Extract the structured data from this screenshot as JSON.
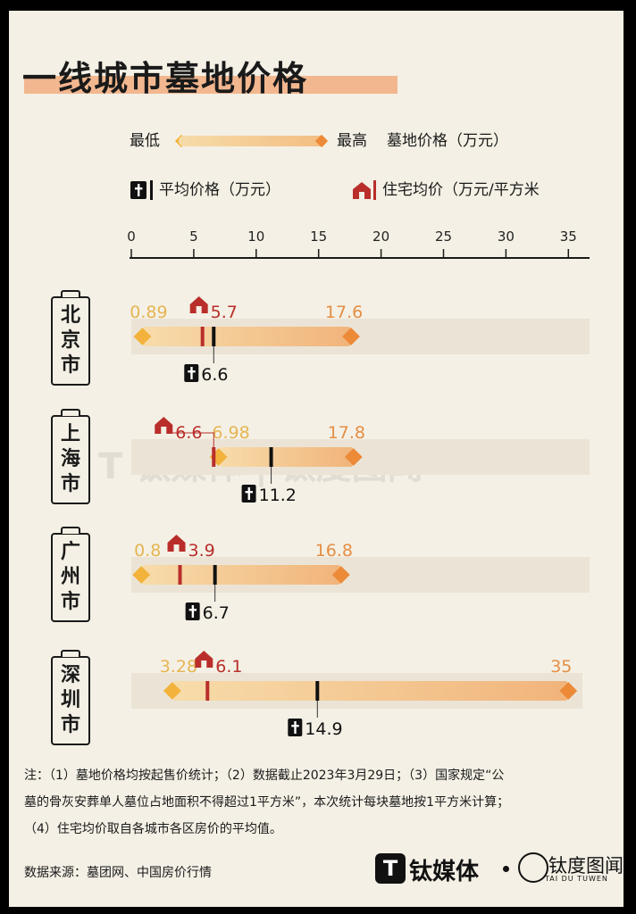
{
  "title": "一线城市墓地价格",
  "legend": {
    "min_label": "最低",
    "max_label": "最高",
    "range_label": "墓地价格（万元）",
    "avg_label": "平均价格（万元）",
    "house_label": "住宅均价（万元/平方米"
  },
  "chart_data": {
    "type": "range",
    "x_ticks": [
      0,
      5,
      10,
      15,
      20,
      25,
      30,
      35
    ],
    "xlim": [
      0,
      36
    ],
    "colors": {
      "min": "#f3b23c",
      "max": "#ec8a38",
      "avg": "#111111",
      "house": "#b92e2a",
      "track": "#ebe4d6"
    },
    "rows": [
      {
        "city": "北京市",
        "city_chars": [
          "北",
          "京",
          "市"
        ],
        "min": 0.89,
        "max": 17.6,
        "avg": 6.6,
        "house": 5.7,
        "min_label": "0.89",
        "max_label": "17.6",
        "avg_label": "6.6",
        "house_label": "5.7"
      },
      {
        "city": "上海市",
        "city_chars": [
          "上",
          "海",
          "市"
        ],
        "min": 6.98,
        "max": 17.8,
        "avg": 11.2,
        "house": 6.6,
        "min_label": "6.98",
        "max_label": "17.8",
        "avg_label": "11.2",
        "house_label": "6.6"
      },
      {
        "city": "广州市",
        "city_chars": [
          "广",
          "州",
          "市"
        ],
        "min": 0.8,
        "max": 16.8,
        "avg": 6.7,
        "house": 3.9,
        "min_label": "0.8",
        "max_label": "16.8",
        "avg_label": "6.7",
        "house_label": "3.9"
      },
      {
        "city": "深圳市",
        "city_chars": [
          "深",
          "圳",
          "市"
        ],
        "min": 3.28,
        "max": 35,
        "avg": 14.9,
        "house": 6.1,
        "min_label": "3.28",
        "max_label": "35",
        "avg_label": "14.9",
        "house_label": "6.1"
      }
    ]
  },
  "notes": {
    "line1": "注：（1）墓地价格均按起售价统计；（2）数据截止2023年3月29日；（3）国家规定“公",
    "line2": "墓的骨灰安葬单人墓位占地面积不得超过1平方米”，本次统计每块墓地按1平方米计算；",
    "line3": "（4）住宅均价取自各城市各区房价的平均值。",
    "source": "数据来源：墓团网、中国房价行情"
  },
  "footer": {
    "brand1": "钛媒体",
    "brand2": "钛度图闻",
    "brand2_sub": "TAI DU TUWEN"
  }
}
